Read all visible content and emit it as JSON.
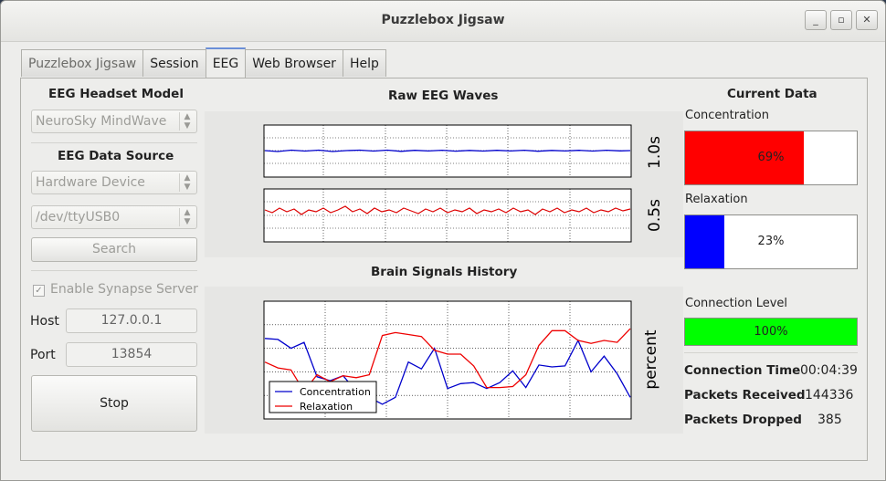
{
  "window": {
    "title": "Puzzlebox Jigsaw",
    "buttons": [
      "_",
      "▫",
      "✕"
    ]
  },
  "tabs": [
    {
      "label": "Puzzlebox Jigsaw"
    },
    {
      "label": "Session"
    },
    {
      "label": "EEG"
    },
    {
      "label": "Web Browser"
    },
    {
      "label": "Help"
    }
  ],
  "left": {
    "headset_heading": "EEG Headset Model",
    "headset_model": "NeuroSky MindWave",
    "source_heading": "EEG Data Source",
    "source": "Hardware Device",
    "port_device": "/dev/ttyUSB0",
    "search_label": "Search",
    "synapse_label": "Enable Synapse Server",
    "synapse_checked": true,
    "host_label": "Host",
    "host_value": "127.0.0.1",
    "port_label": "Port",
    "port_value": "13854",
    "stop_label": "Stop"
  },
  "center": {
    "raw_title": "Raw EEG Waves",
    "raw_axis_top": "1.0s",
    "raw_axis_bottom": "0.5s",
    "history_title": "Brain Signals History",
    "history_ylabel": "percent"
  },
  "right": {
    "heading": "Current Data",
    "concentration_label": "Concentration",
    "concentration_value": "69%",
    "concentration_fraction": 0.69,
    "concentration_color": "#ff0000",
    "relaxation_label": "Relaxation",
    "relaxation_value": "23%",
    "relaxation_fraction": 0.23,
    "relaxation_color": "#0000ff",
    "connection_label": "Connection Level",
    "connection_value": "100%",
    "connection_fraction": 1.0,
    "connection_color": "#00ff00",
    "connection_time_label": "Connection Time",
    "connection_time_value": "00:04:39",
    "packets_received_label": "Packets Received",
    "packets_received_value": "144336",
    "packets_dropped_label": "Packets Dropped",
    "packets_dropped_value": "385"
  },
  "chart_data": {
    "type": "line",
    "title": "Brain Signals History",
    "ylabel": "percent",
    "grid": true,
    "legend_position": "lower-left",
    "series": [
      {
        "name": "Concentration",
        "color": "#0000cc",
        "values": [
          62,
          61,
          52,
          58,
          23,
          19,
          24,
          8,
          2,
          -5,
          2,
          38,
          31,
          52,
          11,
          16,
          17,
          11,
          17,
          29,
          12,
          35,
          33,
          34,
          60,
          28,
          44,
          26,
          2
        ]
      },
      {
        "name": "Relaxation",
        "color": "#ee0000",
        "values": [
          38,
          32,
          30,
          8,
          25,
          18,
          24,
          22,
          25,
          65,
          68,
          66,
          64,
          50,
          46,
          46,
          34,
          12,
          12,
          13,
          25,
          55,
          70,
          70,
          60,
          57,
          60,
          58,
          72
        ]
      }
    ]
  }
}
